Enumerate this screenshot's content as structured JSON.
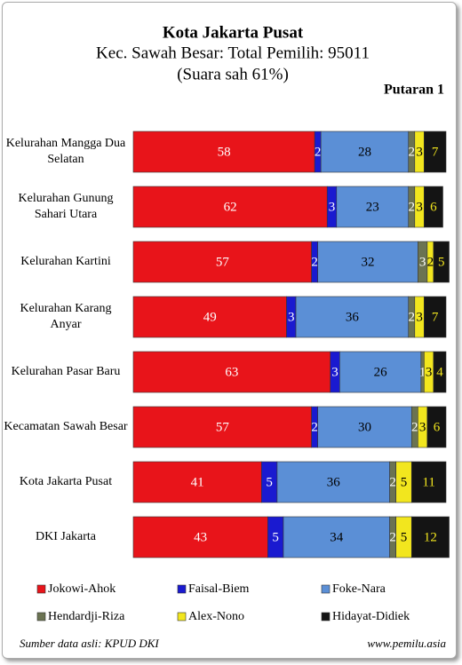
{
  "chart_data": {
    "type": "bar_stacked_horizontal",
    "title": "Kota Jakarta Pusat",
    "subtitle": [
      "Kec. Sawah Besar: Total Pemilih: 95011",
      "(Suara sah 61%)"
    ],
    "annotation": "Putaran 1",
    "source": "Sumber data asli: KPUD DKI",
    "website": "www.pemilu.asia",
    "xlim": [
      0,
      100
    ],
    "categories": [
      "Kelurahan Mangga Dua Selatan",
      "Kelurahan Gunung Sahari Utara",
      "Kelurahan Kartini",
      "Kelurahan Karang Anyar",
      "Kelurahan Pasar Baru",
      "Kecamatan Sawah Besar",
      "Kota Jakarta Pusat",
      "DKI Jakarta"
    ],
    "series": [
      {
        "name": "Jokowi-Ahok",
        "color": "#e8141a",
        "label_color": "#ffffff",
        "values": [
          58,
          62,
          57,
          49,
          63,
          57,
          41,
          43
        ]
      },
      {
        "name": "Faisal-Biem",
        "color": "#1a1ad0",
        "label_color": "#ffffff",
        "values": [
          2,
          3,
          2,
          3,
          3,
          2,
          5,
          5
        ]
      },
      {
        "name": "Foke-Nara",
        "color": "#5b8fd6",
        "label_color": "#000000",
        "values": [
          28,
          23,
          32,
          36,
          26,
          30,
          36,
          34
        ]
      },
      {
        "name": "Hendardji-Riza",
        "color": "#6b7352",
        "label_color": "#ffffff",
        "values": [
          2,
          2,
          3,
          2,
          1,
          2,
          2,
          2
        ]
      },
      {
        "name": "Alex-Nono",
        "color": "#f2e61e",
        "label_color": "#000000",
        "values": [
          3,
          3,
          2,
          3,
          3,
          3,
          5,
          5
        ]
      },
      {
        "name": "Hidayat-Didiek",
        "color": "#141414",
        "label_color": "#f2e61e",
        "values": [
          7,
          6,
          5,
          7,
          4,
          6,
          11,
          12
        ]
      }
    ]
  }
}
